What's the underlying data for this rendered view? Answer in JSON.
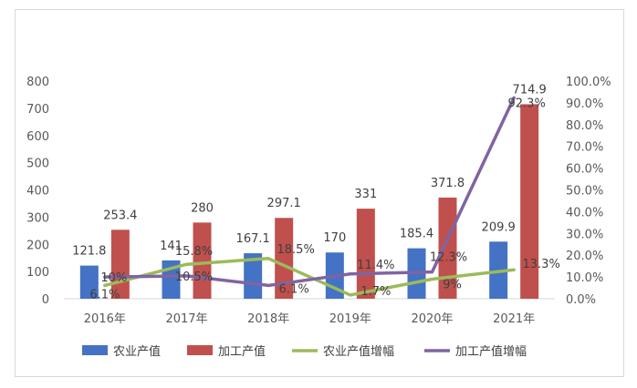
{
  "chart_data": {
    "type": "bar",
    "categories": [
      "2016年",
      "2017年",
      "2018年",
      "2019年",
      "2020年",
      "2021年"
    ],
    "series": [
      {
        "name": "农业产值",
        "kind": "bar",
        "axis": "left",
        "color": "#4472C4",
        "values": [
          121.8,
          141,
          167.1,
          170,
          185.4,
          209.9
        ],
        "labels": [
          "121.8",
          "141",
          "167.1",
          "170",
          "185.4",
          "209.9"
        ]
      },
      {
        "name": "加工产值",
        "kind": "bar",
        "axis": "left",
        "color": "#C0504D",
        "values": [
          253.4,
          280,
          297.1,
          331,
          371.8,
          714.9
        ],
        "labels": [
          "253.4",
          "280",
          "297.1",
          "331",
          "371.8",
          "714.9"
        ]
      },
      {
        "name": "农业产值增幅",
        "kind": "line",
        "axis": "right",
        "color": "#9BBB59",
        "values": [
          6.1,
          15.8,
          18.5,
          1.7,
          9,
          13.3
        ],
        "labels": [
          "6.1%",
          "15.8%",
          "18.5%",
          "1.7%",
          "9%",
          "13.3%"
        ]
      },
      {
        "name": "加工产值增幅",
        "kind": "line",
        "axis": "right",
        "color": "#8064A2",
        "values": [
          10,
          10.5,
          6.1,
          11.4,
          12.3,
          92.3
        ],
        "labels": [
          "10%",
          "10.5%",
          "6.1%",
          "11.4%",
          "12.3%",
          "92.3%"
        ]
      }
    ],
    "y_left": {
      "ylim": [
        0,
        800
      ],
      "ticks": [
        "0",
        "100",
        "200",
        "300",
        "400",
        "500",
        "600",
        "700",
        "800"
      ]
    },
    "y_right": {
      "ylim": [
        0,
        100
      ],
      "ticks": [
        "0.0%",
        "10.0%",
        "20.0%",
        "30.0%",
        "40.0%",
        "50.0%",
        "60.0%",
        "70.0%",
        "80.0%",
        "90.0%",
        "100.0%"
      ]
    },
    "grid": false,
    "legend_position": "bottom"
  }
}
